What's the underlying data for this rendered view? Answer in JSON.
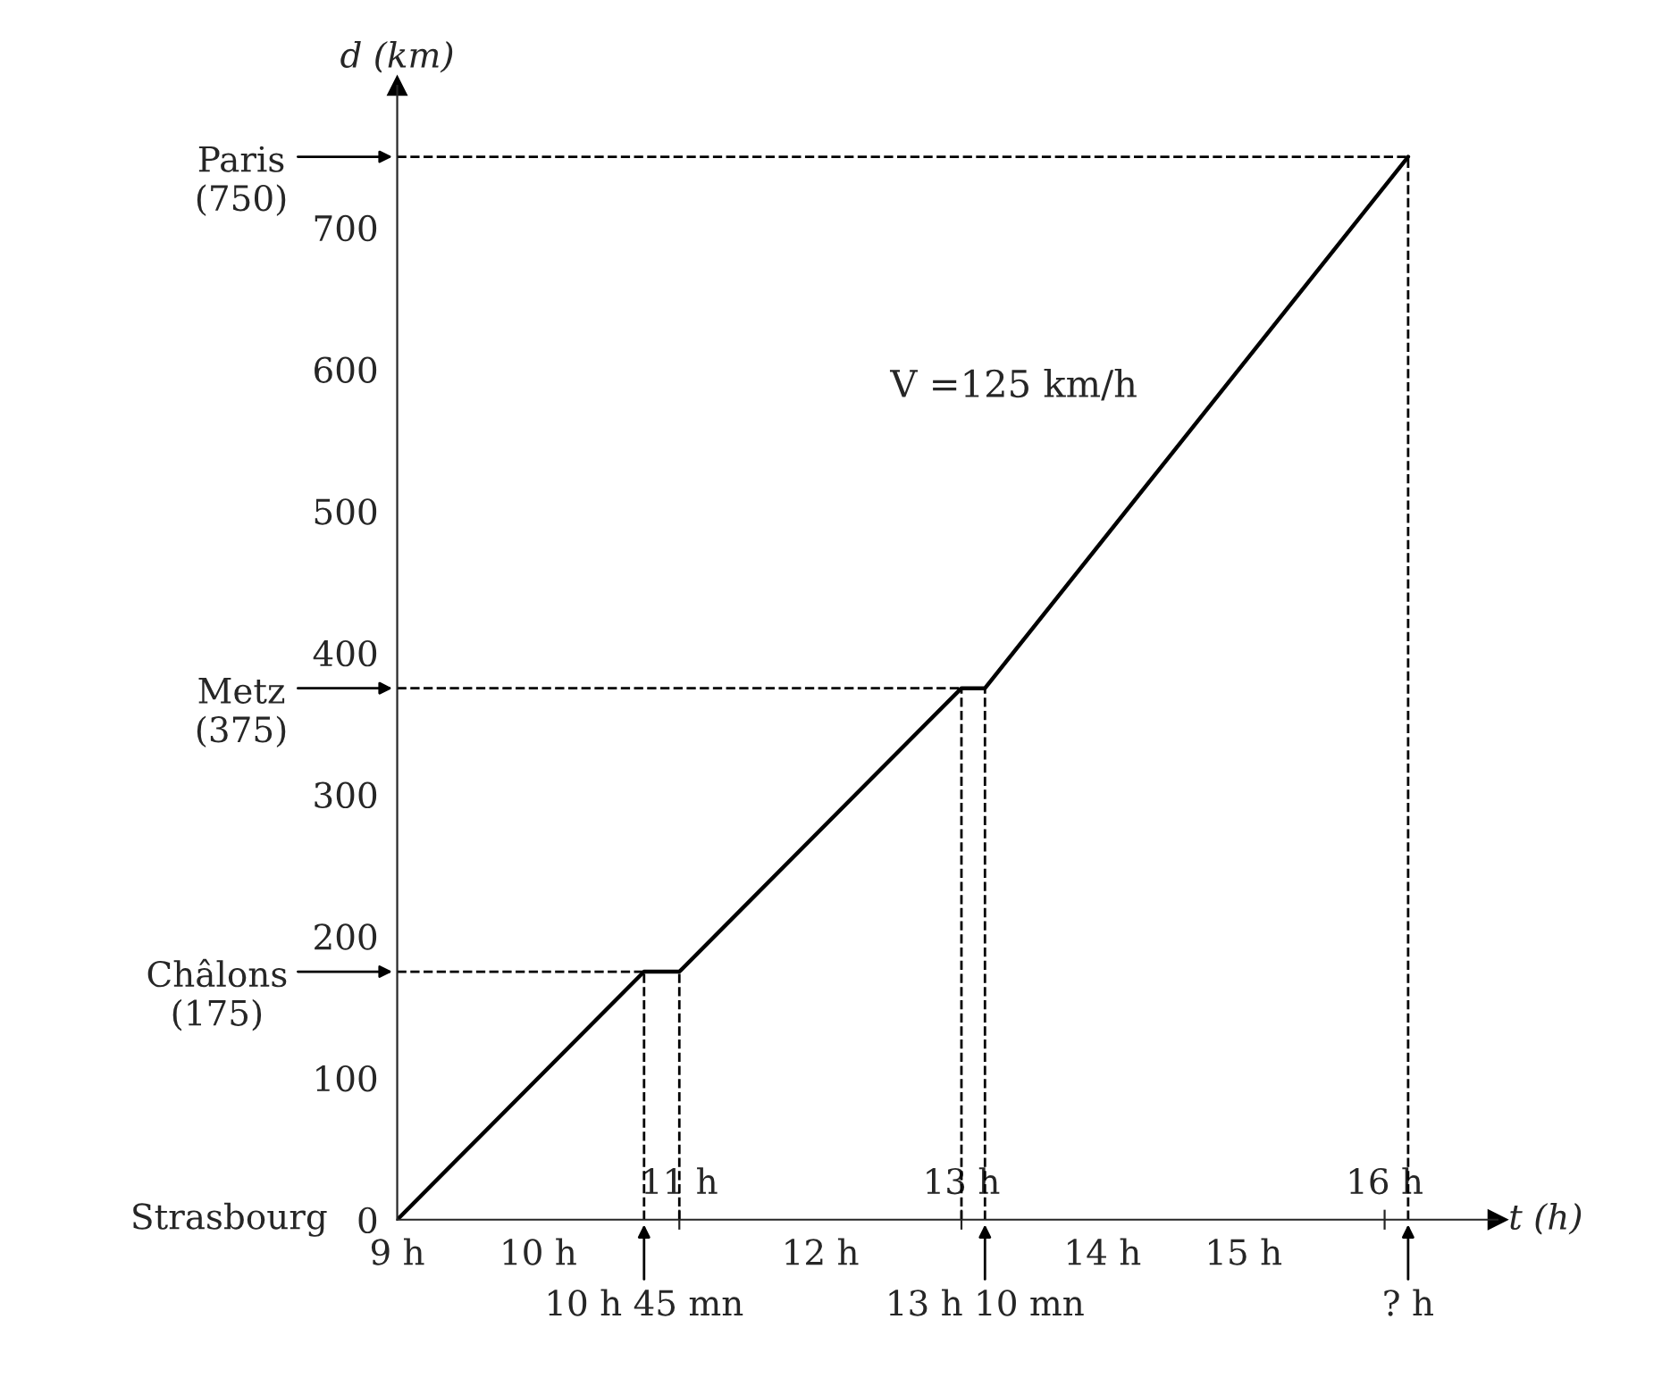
{
  "chart_data": {
    "type": "line",
    "xlabel": "t (h)",
    "ylabel": "d (km)",
    "x": [
      9,
      10.75,
      11,
      13,
      13.1667,
      16.1667
    ],
    "series": [
      {
        "color": "#000000",
        "values": [
          0,
          175,
          175,
          375,
          375,
          750
        ]
      }
    ],
    "xlim": [
      9,
      16.8
    ],
    "ylim": [
      0,
      800
    ],
    "xticks": [
      {
        "value": 9,
        "label": "9 h"
      },
      {
        "value": 10,
        "label": "10 h"
      },
      {
        "value": 12,
        "label": "12 h"
      },
      {
        "value": 14,
        "label": "14 h"
      },
      {
        "value": 15,
        "label": "15 h"
      }
    ],
    "x2lim": [
      9,
      16.8
    ],
    "x2ticks": [
      {
        "value": 11,
        "label": "11 h"
      },
      {
        "value": 13,
        "label": "13 h"
      },
      {
        "value": 16,
        "label": "16 h"
      }
    ],
    "yticks": [
      0,
      100,
      200,
      300,
      400,
      500,
      600,
      700
    ],
    "ref_lines": [
      {
        "axis": "y",
        "value": 750,
        "label": "Paris\n(750)",
        "line_style": "dashed",
        "color": "#000000"
      },
      {
        "axis": "y",
        "value": 375,
        "label": "Metz\n(375)",
        "line_style": "dashed",
        "color": "#000000"
      },
      {
        "axis": "y",
        "value": 175,
        "label": "Châlons\n(175)",
        "line_style": "dashed",
        "color": "#000000"
      },
      {
        "axis": "x",
        "value": 10.75,
        "label": "10 h 45 mn",
        "line_style": "dashed",
        "color": "#000000"
      },
      {
        "axis": "x",
        "value": 11,
        "line_style": "dashed",
        "color": "#000000"
      },
      {
        "axis": "x",
        "value": 13,
        "line_style": "dashed",
        "color": "#000000"
      },
      {
        "axis": "x",
        "value": 13.1667,
        "label": "13 h 10 mn",
        "line_style": "dashed",
        "color": "#000000"
      },
      {
        "axis": "x",
        "value": 16.1667,
        "label": "? h",
        "line_style": "dashed",
        "color": "#000000"
      }
    ],
    "annotations": [
      {
        "text": "Strasbourg",
        "x": 9,
        "y": 0
      },
      {
        "text": "V =125 km/h",
        "x": 14.6,
        "y": 554
      }
    ],
    "grid": false,
    "legend": false,
    "marker": "none",
    "line_style": "solid"
  }
}
